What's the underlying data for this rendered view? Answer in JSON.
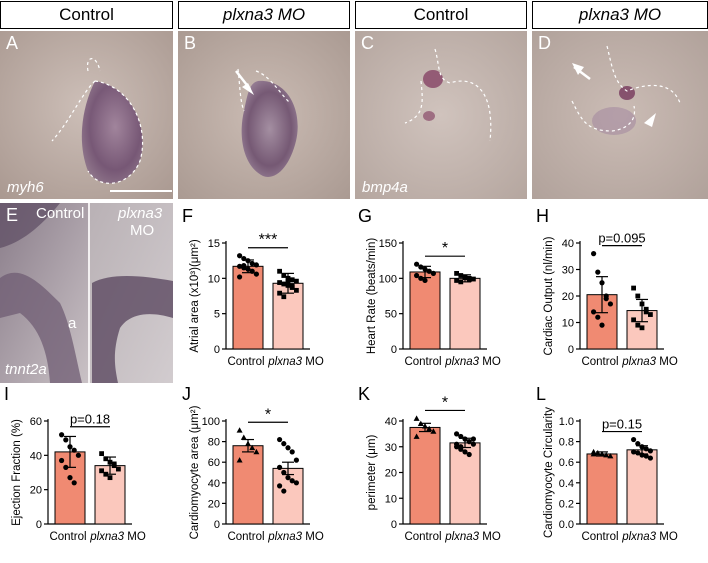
{
  "headers": [
    {
      "text": "Control",
      "italic": false
    },
    {
      "text": "plxna3 MO",
      "italic": true
    },
    {
      "text": "Control",
      "italic": false
    },
    {
      "text": "plxna3 MO",
      "italic": true
    }
  ],
  "micro_panels": {
    "A": {
      "letter": "A",
      "stain": "myh6"
    },
    "B": {
      "letter": "B"
    },
    "C": {
      "letter": "C",
      "stain": "bmp4a"
    },
    "D": {
      "letter": "D"
    },
    "E": {
      "letter": "E",
      "stain": "tnnt2a",
      "control": "Control",
      "mo_line1": "plxna3",
      "mo_line2": "MO",
      "chamber": "a"
    }
  },
  "colors": {
    "control_bar": "#f08a72",
    "mo_bar": "#fbc8bd",
    "axis": "#000000"
  },
  "chart_data": [
    {
      "letter": "F",
      "type": "bar",
      "categories": [
        "Control",
        "plxna3 MO"
      ],
      "category_display": [
        {
          "plain": "Control",
          "italic": ""
        },
        {
          "plain": " MO",
          "italic": "plxna3"
        }
      ],
      "values": [
        11.7,
        9.3
      ],
      "errors": [
        0.9,
        1.4
      ],
      "ylabel": "Atrial area (x10³)(μm²)",
      "ylim": [
        0,
        15
      ],
      "yticks": [
        0,
        5,
        10,
        15
      ],
      "significance": "***",
      "points": [
        [
          13.2,
          12.8,
          12.5,
          12.1,
          11.9,
          11.7,
          11.5,
          11.3,
          11.0,
          10.6,
          10.2,
          11.8
        ],
        [
          11.0,
          10.4,
          10.0,
          9.8,
          9.6,
          9.4,
          9.2,
          9.0,
          8.7,
          8.3,
          7.9,
          7.4,
          9.5,
          8.9
        ]
      ],
      "markers": [
        "circle",
        "square"
      ]
    },
    {
      "letter": "G",
      "type": "bar",
      "categories": [
        "Control",
        "plxna3 MO"
      ],
      "category_display": [
        {
          "plain": "Control",
          "italic": ""
        },
        {
          "plain": " MO",
          "italic": "plxna3"
        }
      ],
      "values": [
        109,
        100
      ],
      "errors": [
        8,
        5
      ],
      "ylabel": "Heart Rate (beats/min)",
      "ylim": [
        0,
        150
      ],
      "yticks": [
        0,
        50,
        100,
        150
      ],
      "significance": "*",
      "points": [
        [
          120,
          116,
          113,
          110,
          107,
          104,
          100,
          97
        ],
        [
          107,
          104,
          102,
          100,
          99,
          97,
          95,
          101,
          98
        ]
      ],
      "markers": [
        "circle",
        "square"
      ]
    },
    {
      "letter": "H",
      "type": "bar",
      "categories": [
        "Control",
        "plxna3 MO"
      ],
      "category_display": [
        {
          "plain": "Control",
          "italic": ""
        },
        {
          "plain": " MO",
          "italic": "plxna3"
        }
      ],
      "values": [
        20.5,
        14.5
      ],
      "errors": [
        6.8,
        4.2
      ],
      "ylabel": "Cardiac Output (nl/min)",
      "ylim": [
        0,
        40
      ],
      "yticks": [
        0,
        10,
        20,
        30,
        40
      ],
      "significance": "p=0.095",
      "points": [
        [
          36,
          29,
          25,
          20,
          17,
          14,
          12,
          9,
          19
        ],
        [
          23,
          20,
          17,
          15,
          13,
          11,
          9,
          8,
          14
        ]
      ],
      "markers": [
        "circle",
        "square"
      ]
    },
    {
      "letter": "I",
      "type": "bar",
      "categories": [
        "Control",
        "plxna3 MO"
      ],
      "category_display": [
        {
          "plain": "Control",
          "italic": ""
        },
        {
          "plain": " MO",
          "italic": "plxna3"
        }
      ],
      "values": [
        42,
        34
      ],
      "errors": [
        9,
        5
      ],
      "ylabel": "Ejection Fraction (%)",
      "ylim": [
        0,
        60
      ],
      "yticks": [
        0,
        20,
        40,
        60
      ],
      "significance": "p=0.18",
      "points": [
        [
          52,
          49,
          45,
          43,
          40,
          37,
          33,
          27,
          24
        ],
        [
          41,
          38,
          36,
          34,
          32,
          31,
          29,
          27,
          35
        ]
      ],
      "markers": [
        "circle",
        "square"
      ]
    },
    {
      "letter": "J",
      "type": "bar",
      "categories": [
        "Control",
        "plxna3 MO"
      ],
      "category_display": [
        {
          "plain": "Control",
          "italic": ""
        },
        {
          "plain": " MO",
          "italic": "plxna3"
        }
      ],
      "values": [
        76,
        54
      ],
      "errors": [
        6,
        6
      ],
      "ylabel": "Cardiomyocyte area (μm²)",
      "ylim": [
        0,
        100
      ],
      "yticks": [
        0,
        20,
        40,
        60,
        80,
        100
      ],
      "significance": "*",
      "points": [
        [
          91,
          84,
          78,
          74,
          70,
          62
        ],
        [
          82,
          78,
          74,
          70,
          62,
          55,
          50,
          45,
          42,
          40,
          37,
          32
        ]
      ],
      "markers": [
        "triangle",
        "circle"
      ]
    },
    {
      "letter": "K",
      "type": "bar",
      "categories": [
        "Control",
        "plxna3 MO"
      ],
      "category_display": [
        {
          "plain": "Control",
          "italic": ""
        },
        {
          "plain": " MO",
          "italic": "plxna3"
        }
      ],
      "values": [
        37.5,
        31.5
      ],
      "errors": [
        1.6,
        1.8
      ],
      "ylabel": "perimeter (μm)",
      "ylim": [
        0,
        40
      ],
      "yticks": [
        0,
        10,
        20,
        30,
        40
      ],
      "significance": "*",
      "points": [
        [
          41,
          39,
          38,
          37,
          36,
          34
        ],
        [
          35,
          34,
          33,
          32,
          31,
          30,
          29,
          28,
          27,
          33,
          31,
          30
        ]
      ],
      "markers": [
        "triangle",
        "circle"
      ]
    },
    {
      "letter": "L",
      "type": "bar",
      "categories": [
        "Control",
        "plxna3 MO"
      ],
      "category_display": [
        {
          "plain": "Control",
          "italic": ""
        },
        {
          "plain": " MO",
          "italic": "plxna3"
        }
      ],
      "values": [
        0.68,
        0.72
      ],
      "errors": [
        0.02,
        0.04
      ],
      "ylabel": "Cardiomyocyte Circularity",
      "ylim": [
        0,
        1.0
      ],
      "yticks": [
        0.0,
        0.2,
        0.4,
        0.6,
        0.8,
        1.0
      ],
      "ytick_labels": [
        "0.0",
        "0.2",
        "0.4",
        "0.6",
        "0.8",
        "1.0"
      ],
      "significance": "p=0.15",
      "points": [
        [
          0.7,
          0.69,
          0.68,
          0.67,
          0.66,
          0.68
        ],
        [
          0.82,
          0.78,
          0.75,
          0.73,
          0.71,
          0.7,
          0.69,
          0.67,
          0.66,
          0.64
        ]
      ],
      "markers": [
        "triangle",
        "circle"
      ]
    }
  ]
}
